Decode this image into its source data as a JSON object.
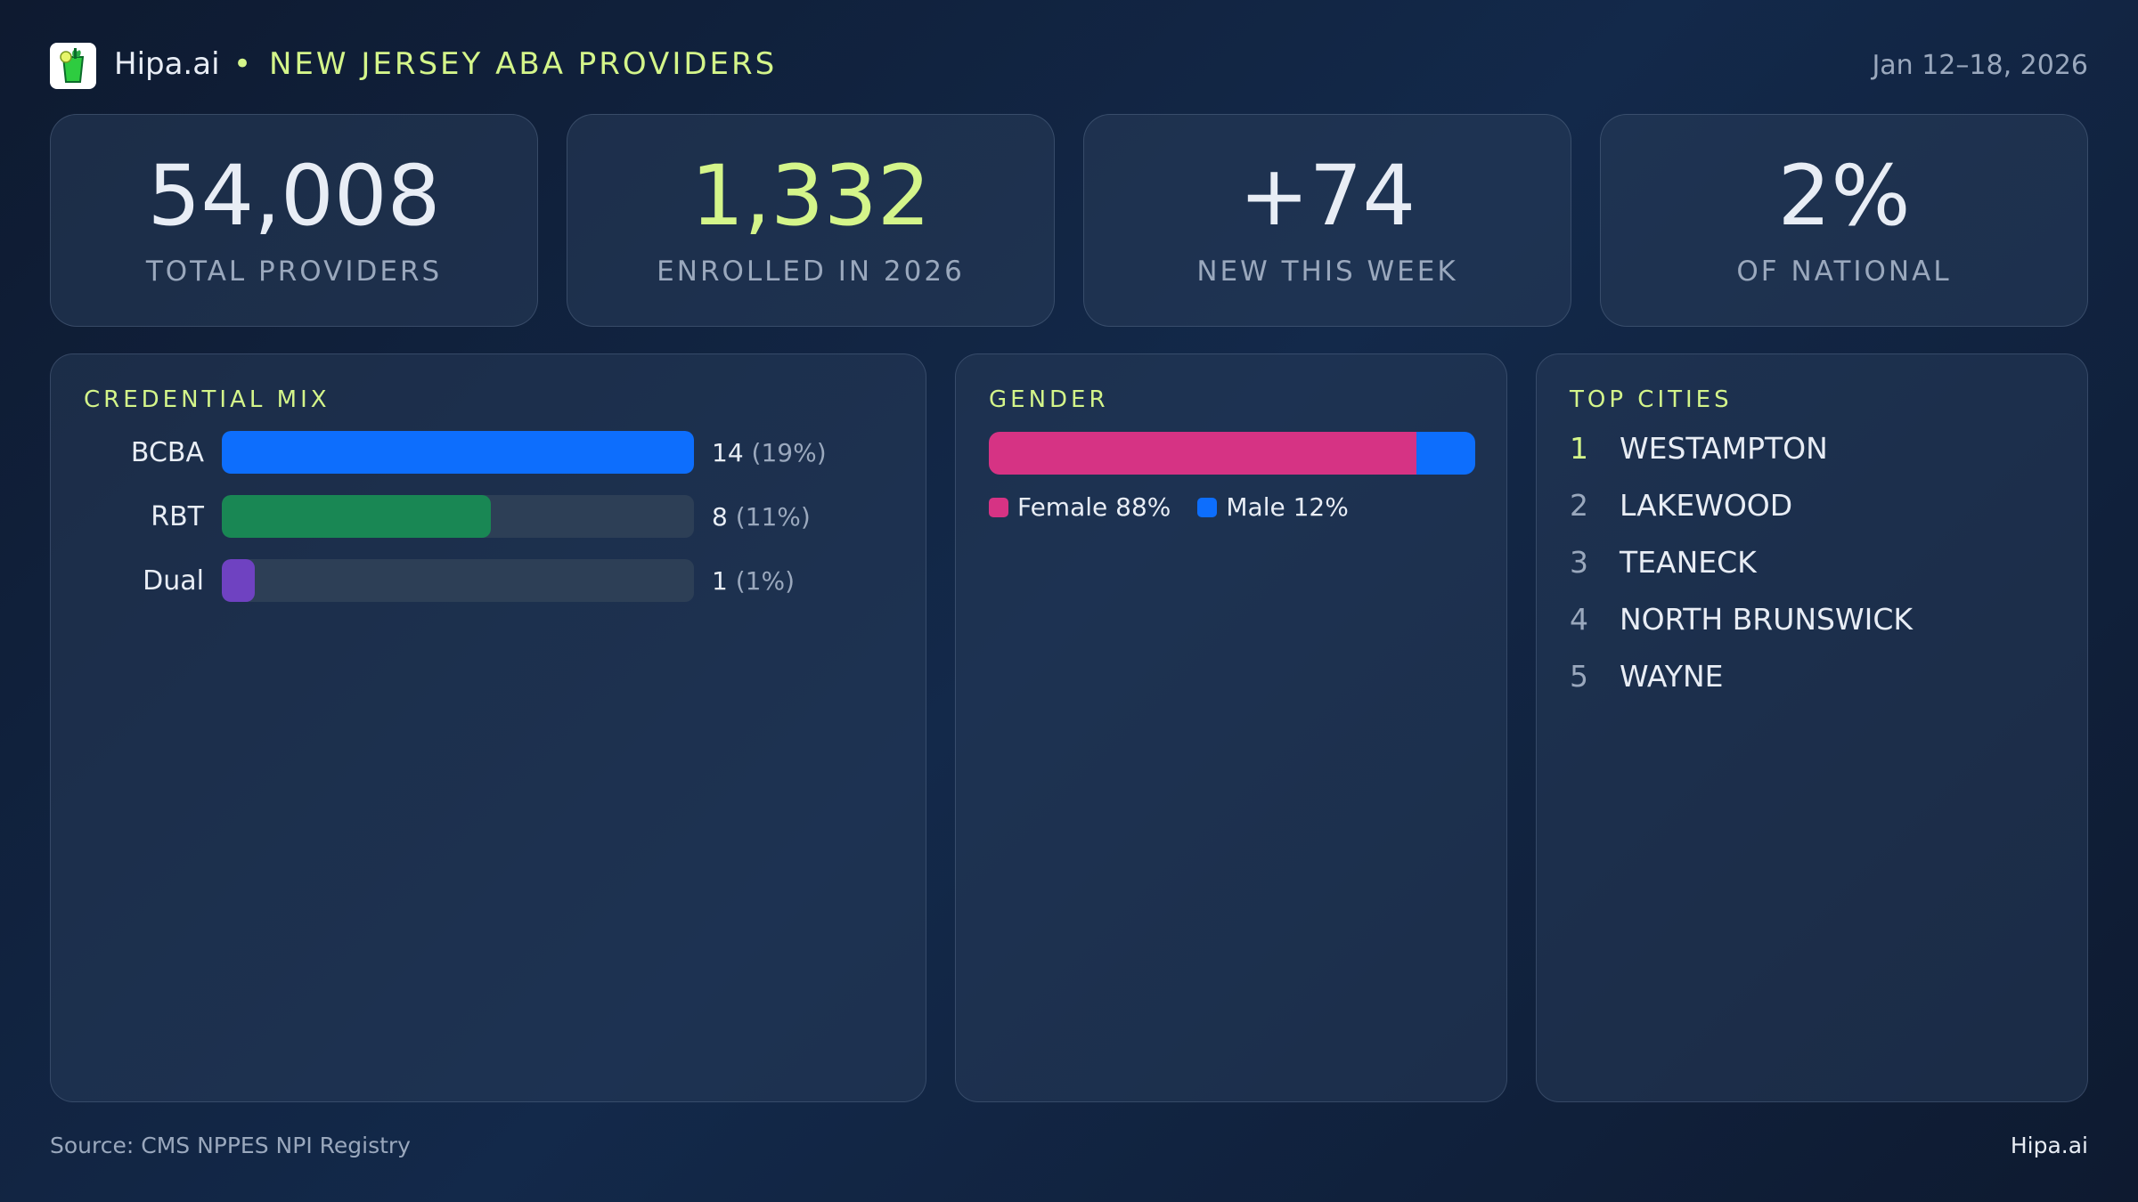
{
  "header": {
    "brand": "Hipa.ai",
    "separator": "•",
    "title": "NEW JERSEY ABA PROVIDERS",
    "date_range": "Jan 12–18, 2026",
    "logo_icon": "cocktail-glass-icon"
  },
  "kpis": [
    {
      "value": "54,008",
      "label": "TOTAL PROVIDERS",
      "color": "#ffffff"
    },
    {
      "value": "1,332",
      "label": "ENROLLED IN 2026",
      "color": "#d4f58a"
    },
    {
      "value": "+74",
      "label": "NEW THIS WEEK",
      "color": "#ffffff"
    },
    {
      "value": "2%",
      "label": "OF NATIONAL",
      "color": "#ffffff"
    }
  ],
  "credential_mix": {
    "title": "CREDENTIAL MIX",
    "items": [
      {
        "label": "BCBA",
        "count": "14",
        "pct": "(19%)",
        "fill": 1.0,
        "color": "#0d6efd"
      },
      {
        "label": "RBT",
        "count": "8",
        "pct": "(11%)",
        "fill": 0.57,
        "color": "#198754"
      },
      {
        "label": "Dual",
        "count": "1",
        "pct": "(1%)",
        "fill": 0.07,
        "color": "#6f42c1"
      }
    ]
  },
  "gender": {
    "title": "GENDER",
    "female_label": "Female 88%",
    "male_label": "Male 12%",
    "female_pct": 88,
    "male_pct": 12,
    "female_color": "#d63384",
    "male_color": "#0d6efd"
  },
  "top_cities": {
    "title": "TOP CITIES",
    "items": [
      {
        "rank": "1",
        "name": "WESTAMPTON"
      },
      {
        "rank": "2",
        "name": "LAKEWOOD"
      },
      {
        "rank": "3",
        "name": "TEANECK"
      },
      {
        "rank": "4",
        "name": "NORTH BRUNSWICK"
      },
      {
        "rank": "5",
        "name": "WAYNE"
      }
    ]
  },
  "footer": {
    "source": "Source: CMS NPPES NPI Registry",
    "brand": "Hipa.ai"
  }
}
